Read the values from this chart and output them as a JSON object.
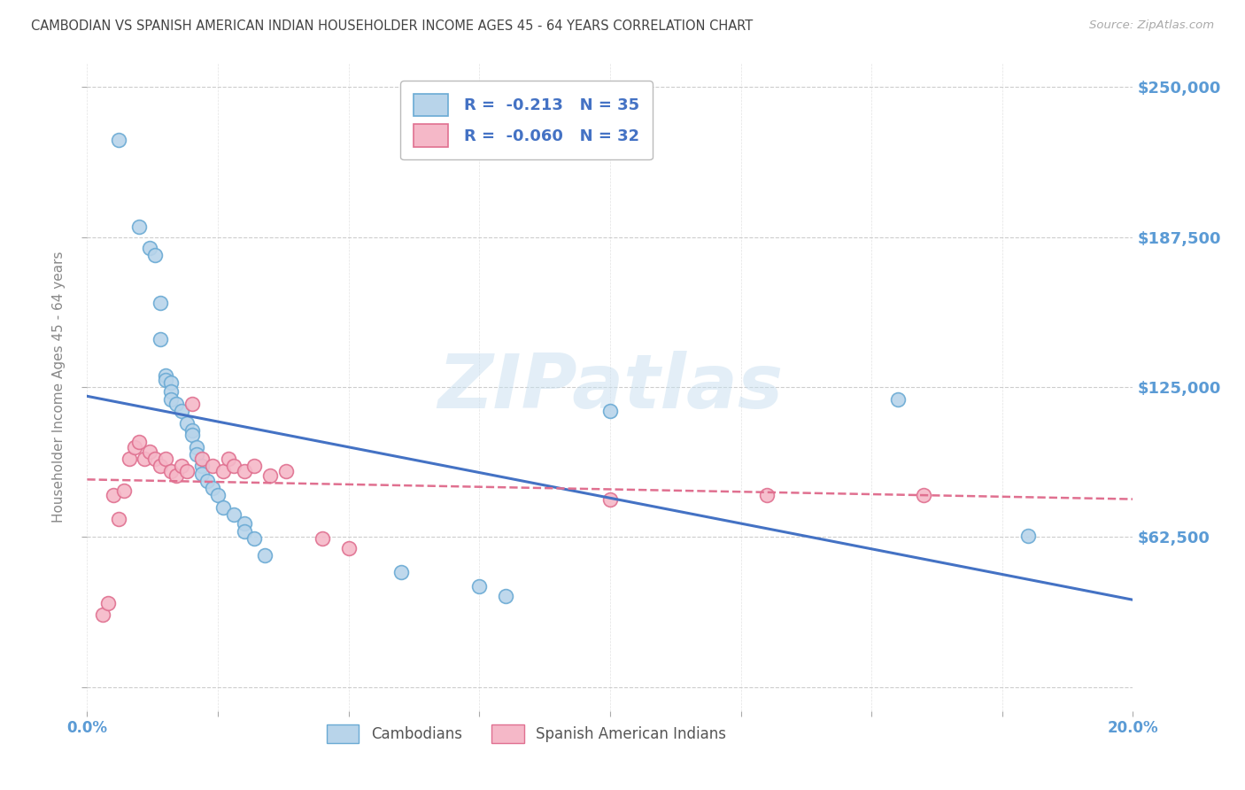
{
  "title": "CAMBODIAN VS SPANISH AMERICAN INDIAN HOUSEHOLDER INCOME AGES 45 - 64 YEARS CORRELATION CHART",
  "source": "Source: ZipAtlas.com",
  "ylabel": "Householder Income Ages 45 - 64 years",
  "xlim": [
    0.0,
    0.2
  ],
  "ylim": [
    -10000,
    260000
  ],
  "plot_ylim": [
    0,
    250000
  ],
  "yticks": [
    0,
    62500,
    125000,
    187500,
    250000
  ],
  "ytick_labels": [
    "",
    "$62,500",
    "$125,000",
    "$187,500",
    "$250,000"
  ],
  "xticks": [
    0.0,
    0.025,
    0.05,
    0.075,
    0.1,
    0.125,
    0.15,
    0.175,
    0.2
  ],
  "xtick_labels_bottom": [
    "0.0%",
    "",
    "",
    "",
    "",
    "",
    "",
    "",
    "20.0%"
  ],
  "watermark": "ZIPatlas",
  "legend_r1": "R =  -0.213",
  "legend_n1": "N = 35",
  "legend_r2": "R =  -0.060",
  "legend_n2": "N = 32",
  "cambodian_color": "#b8d4ea",
  "cambodian_edge": "#6aaad4",
  "spanish_color": "#f5b8c8",
  "spanish_edge": "#e07090",
  "line_blue_color": "#4472c4",
  "line_pink_color": "#e07090",
  "label_color_blue": "#5b9bd5",
  "legend_text_color": "#4472c4",
  "background_color": "#ffffff",
  "grid_color": "#c8c8c8",
  "title_color": "#444444",
  "right_axis_color": "#5b9bd5",
  "cambodian_x": [
    0.006,
    0.01,
    0.012,
    0.013,
    0.014,
    0.014,
    0.015,
    0.015,
    0.016,
    0.016,
    0.016,
    0.017,
    0.018,
    0.019,
    0.02,
    0.02,
    0.021,
    0.021,
    0.022,
    0.022,
    0.023,
    0.024,
    0.025,
    0.026,
    0.028,
    0.03,
    0.03,
    0.032,
    0.034,
    0.06,
    0.075,
    0.08,
    0.1,
    0.155,
    0.18
  ],
  "cambodian_y": [
    228000,
    192000,
    183000,
    180000,
    160000,
    145000,
    130000,
    128000,
    127000,
    123000,
    120000,
    118000,
    115000,
    110000,
    107000,
    105000,
    100000,
    97000,
    92000,
    89000,
    86000,
    83000,
    80000,
    75000,
    72000,
    68000,
    65000,
    62000,
    55000,
    48000,
    42000,
    38000,
    115000,
    120000,
    63000
  ],
  "spanish_x": [
    0.003,
    0.004,
    0.005,
    0.006,
    0.007,
    0.008,
    0.009,
    0.01,
    0.011,
    0.012,
    0.013,
    0.014,
    0.015,
    0.016,
    0.017,
    0.018,
    0.019,
    0.02,
    0.022,
    0.024,
    0.026,
    0.027,
    0.028,
    0.03,
    0.032,
    0.035,
    0.038,
    0.045,
    0.05,
    0.1,
    0.13,
    0.16
  ],
  "spanish_y": [
    30000,
    35000,
    80000,
    70000,
    82000,
    95000,
    100000,
    102000,
    95000,
    98000,
    95000,
    92000,
    95000,
    90000,
    88000,
    92000,
    90000,
    118000,
    95000,
    92000,
    90000,
    95000,
    92000,
    90000,
    92000,
    88000,
    90000,
    62000,
    58000,
    78000,
    80000,
    80000
  ]
}
